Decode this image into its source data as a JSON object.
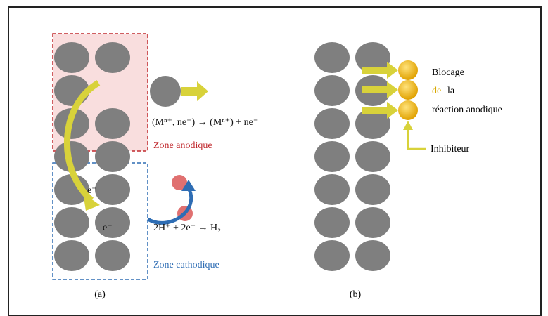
{
  "panel_a": {
    "reaction_anodic": "(Mⁿ⁺, ne⁻) → (Mⁿ⁺) + ne⁻",
    "zone_anodic": "Zone anodique",
    "electron_1": "e⁻",
    "electron_2": "e⁻",
    "reaction_cathodic": "2H⁺ + 2e⁻ → H₂",
    "zone_cathodic": "Zone cathodique",
    "caption": "(a)"
  },
  "panel_b": {
    "line_1": "Blocage",
    "line_2a": "de",
    "line_2b": "la",
    "line_3": "réaction anodique",
    "inhibitor": "Inhibiteur",
    "caption": "(b)"
  }
}
